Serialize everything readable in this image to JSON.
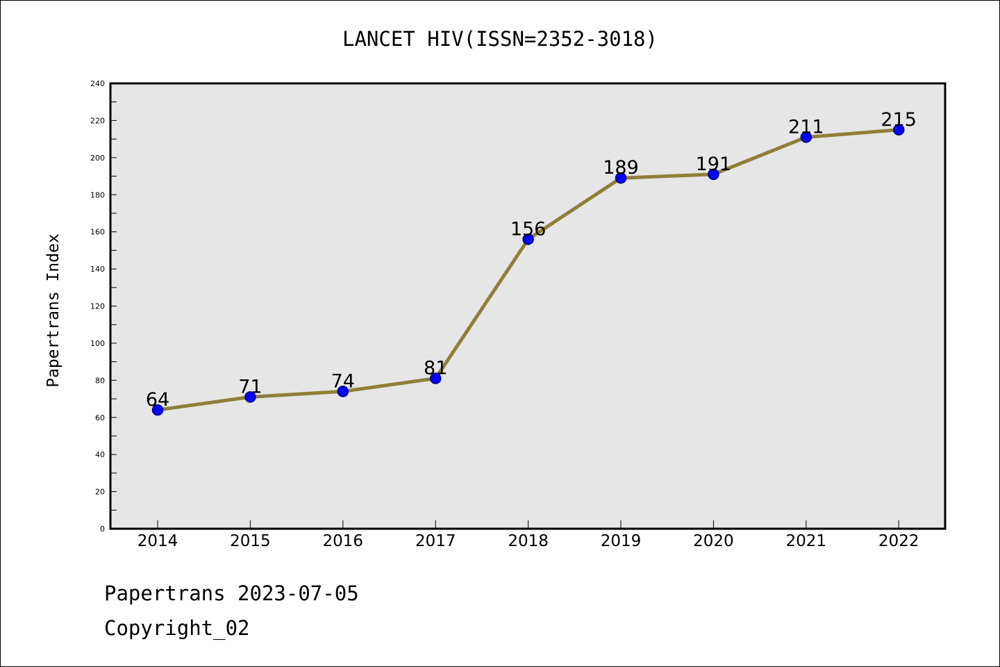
{
  "chart_data": {
    "type": "line",
    "title": "LANCET HIV(ISSN=2352-3018)",
    "xlabel": "",
    "ylabel": "Papertrans Index",
    "categories": [
      "2014",
      "2015",
      "2016",
      "2017",
      "2018",
      "2019",
      "2020",
      "2021",
      "2022"
    ],
    "series": [
      {
        "values": [
          64,
          71,
          74,
          81,
          156,
          189,
          191,
          211,
          215
        ]
      }
    ],
    "data_labels": [
      "64",
      "71",
      "74",
      "81",
      "156",
      "189",
      "191",
      "211",
      "215"
    ],
    "ylim": [
      0,
      240
    ],
    "yticks": [
      "0",
      "20",
      "40",
      "60",
      "80",
      "100",
      "120",
      "140",
      "160",
      "180",
      "200",
      "220",
      "240"
    ],
    "grid": false,
    "legend": "none",
    "colors": {
      "line": "#8f7f3a",
      "marker_fill": "#0000ff",
      "marker_edge": "#000080",
      "plot_background": "#e6e6e6"
    }
  },
  "footer": {
    "line1": "Papertrans 2023-07-05",
    "line2": "Copyright_02"
  }
}
